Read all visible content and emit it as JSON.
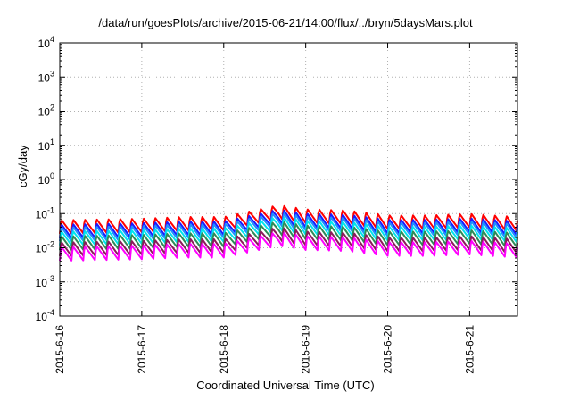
{
  "chart_data": {
    "type": "line",
    "title": "/data/run/goesPlots/archive/2015-06-21/14:00/flux/../bryn/5daysMars.plot",
    "xlabel": "Coordinated Universal Time (UTC)",
    "ylabel": "cGy/day",
    "yscale": "log",
    "ylim": [
      0.0001,
      10000
    ],
    "y_ticks": [
      {
        "base": "10",
        "exp": "-4"
      },
      {
        "base": "10",
        "exp": "-3"
      },
      {
        "base": "10",
        "exp": "-2"
      },
      {
        "base": "10",
        "exp": "-1"
      },
      {
        "base": "10",
        "exp": "0"
      },
      {
        "base": "10",
        "exp": "1"
      },
      {
        "base": "10",
        "exp": "2"
      },
      {
        "base": "10",
        "exp": "3"
      },
      {
        "base": "10",
        "exp": "4"
      }
    ],
    "x_start": "2015-06-16",
    "x_end": "2015-06-21 14:00",
    "x_ticks": [
      "2015-6-16",
      "2015-6-17",
      "2015-6-18",
      "2015-6-19",
      "2015-6-20",
      "2015-6-21"
    ],
    "grid": true,
    "legend": "none",
    "series_colors": [
      "#ff0000",
      "#1a1aff",
      "#1e90ff",
      "#00e5ee",
      "#2e8b57",
      "#8b1a5a",
      "#ff00ff"
    ],
    "series_offsets": [
      1.35,
      1.0,
      0.82,
      0.62,
      0.45,
      0.3,
      0.22
    ],
    "peaks_per_day": 7,
    "envelope": [
      {
        "x": "2015-06-16",
        "y": 0.036
      },
      {
        "x": "2015-06-17",
        "y": 0.04
      },
      {
        "x": "2015-06-17 12:00",
        "y": 0.045
      },
      {
        "x": "2015-06-18",
        "y": 0.045
      },
      {
        "x": "2015-06-18 06:00",
        "y": 0.06
      },
      {
        "x": "2015-06-18 14:00",
        "y": 0.09
      },
      {
        "x": "2015-06-18 16:00",
        "y": 0.1
      },
      {
        "x": "2015-06-19",
        "y": 0.075
      },
      {
        "x": "2015-06-19 12:00",
        "y": 0.07
      },
      {
        "x": "2015-06-20",
        "y": 0.05
      },
      {
        "x": "2015-06-20 12:00",
        "y": 0.05
      },
      {
        "x": "2015-06-21",
        "y": 0.055
      },
      {
        "x": "2015-06-21 14:00",
        "y": 0.045
      }
    ]
  }
}
